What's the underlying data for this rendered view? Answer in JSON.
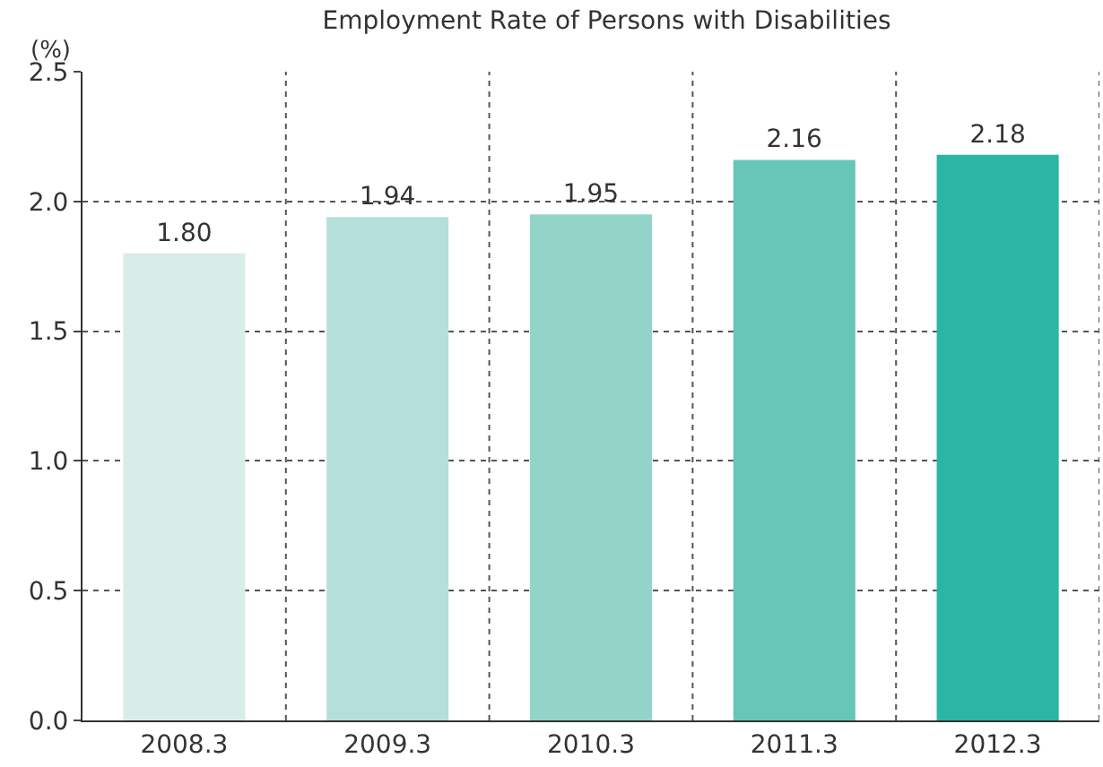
{
  "chart_data": {
    "type": "bar",
    "title": "Employment Rate of Persons with Disabilities",
    "ylabel": "(%)",
    "categories": [
      "2008.3",
      "2009.3",
      "2010.3",
      "2011.3",
      "2012.3"
    ],
    "values": [
      1.8,
      1.94,
      1.95,
      2.16,
      2.18
    ],
    "colors": [
      "#d7ede9",
      "#b4e0d9",
      "#93d4c9",
      "#66c6b8",
      "#2bb5a5"
    ],
    "ylim": [
      0,
      2.5
    ],
    "yticks": [
      "0.0",
      "0.5",
      "1.0",
      "1.5",
      "2.0",
      "2.5"
    ],
    "value_labels": [
      "1.80",
      "1.94",
      "1.95",
      "2.16",
      "2.18"
    ],
    "grid": true
  }
}
